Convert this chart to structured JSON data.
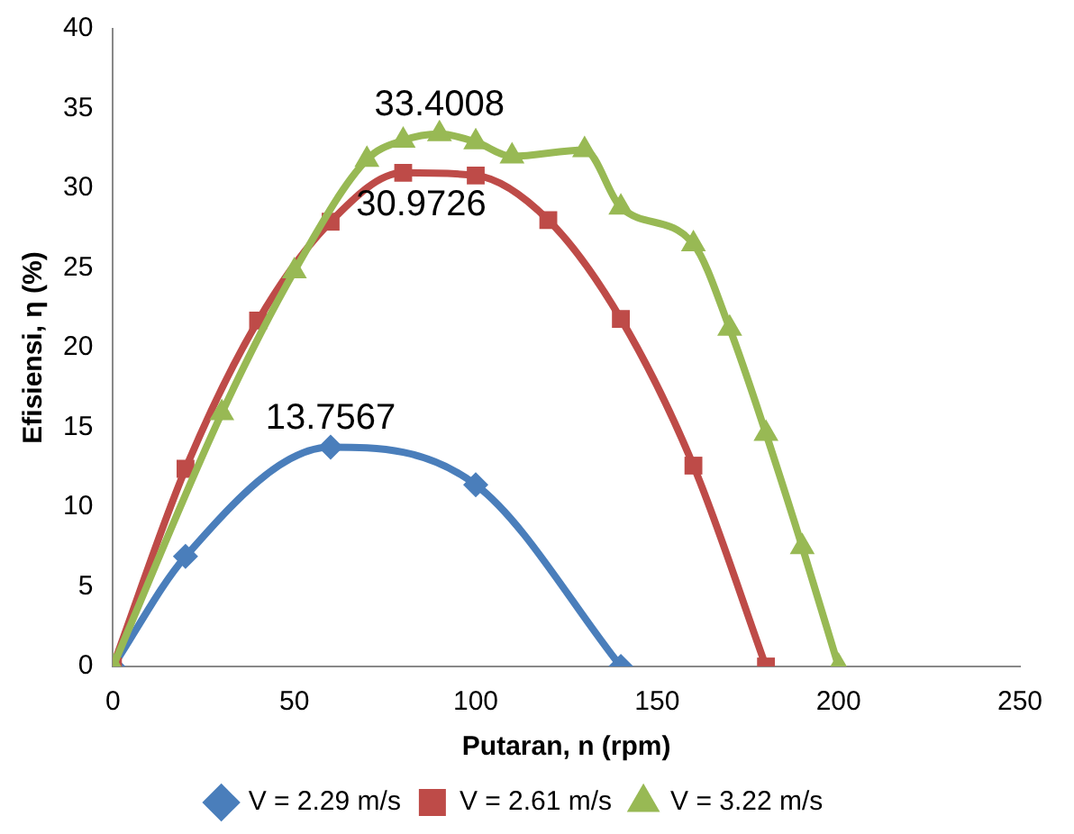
{
  "chart_data": {
    "type": "line",
    "xlabel": "Putaran, n (rpm)",
    "ylabel": "Efisiensi, η (%)",
    "xlim": [
      0,
      250
    ],
    "xticks": [
      0,
      50,
      100,
      150,
      200,
      250
    ],
    "ylim": [
      0,
      40
    ],
    "yticks": [
      0,
      5,
      10,
      15,
      20,
      25,
      30,
      35,
      40
    ],
    "grid": false,
    "legend": "bottom",
    "line_style": "solid",
    "series": [
      {
        "name": "V = 2.29 m/s",
        "color": "#4a7ebb",
        "marker": "diamond",
        "x": [
          0,
          20,
          60,
          100,
          140
        ],
        "values": [
          0,
          6.9,
          13.7567,
          11.4,
          0
        ],
        "value_labels": [
          null,
          null,
          "13.7567",
          null,
          null
        ]
      },
      {
        "name": "V = 2.61 m/s",
        "color": "#be4b48",
        "marker": "square",
        "x": [
          0,
          20,
          40,
          60,
          80,
          100,
          120,
          140,
          160,
          180
        ],
        "values": [
          0,
          12.4,
          21.7,
          27.9,
          30.9726,
          30.8,
          28.0,
          21.8,
          12.6,
          0
        ],
        "value_labels": [
          null,
          null,
          null,
          null,
          "30.9726",
          null,
          null,
          null,
          null,
          null
        ]
      },
      {
        "name": "V = 3.22 m/s",
        "color": "#98b954",
        "marker": "triangle",
        "x": [
          0,
          30,
          50,
          70,
          80,
          90,
          100,
          110,
          130,
          140,
          160,
          170,
          180,
          190,
          200
        ],
        "values": [
          0,
          15.9,
          24.8,
          31.8,
          33.0,
          33.4008,
          32.9,
          32.0,
          32.4,
          28.8,
          26.5,
          21.2,
          14.6,
          7.5,
          0
        ],
        "value_labels": [
          null,
          null,
          null,
          null,
          null,
          "33.4008",
          null,
          null,
          null,
          null,
          null,
          null,
          null,
          null,
          null
        ]
      }
    ]
  }
}
